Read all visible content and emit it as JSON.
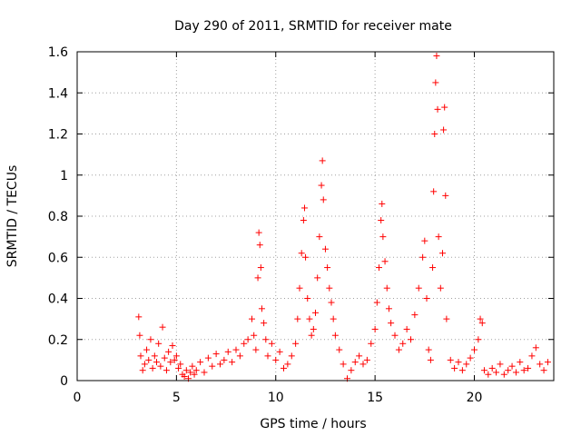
{
  "chart_data": {
    "type": "scatter",
    "title": "Day 290 of 2011, SRMTID for receiver mate",
    "xlabel": "GPS time / hours",
    "ylabel": "SRMTID / TECUs",
    "xlim": [
      0,
      24
    ],
    "ylim": [
      0,
      1.6
    ],
    "x_ticks": [
      0,
      5,
      10,
      15,
      20
    ],
    "x_tick_labels": [
      "0",
      "5",
      "10",
      "15",
      "20"
    ],
    "y_ticks": [
      0,
      0.2,
      0.4,
      0.6,
      0.8,
      1.0,
      1.2,
      1.4,
      1.6
    ],
    "y_tick_labels": [
      "0",
      "0.2",
      "0.4",
      "0.6",
      "0.8",
      "1",
      "1.2",
      "1.4",
      "1.6"
    ],
    "grid": true,
    "marker": "+",
    "marker_color": "#ff0000",
    "series": [
      {
        "name": "SRMTID",
        "points": [
          [
            3.1,
            0.31
          ],
          [
            3.15,
            0.22
          ],
          [
            3.2,
            0.12
          ],
          [
            3.3,
            0.05
          ],
          [
            3.4,
            0.08
          ],
          [
            3.5,
            0.15
          ],
          [
            3.6,
            0.1
          ],
          [
            3.7,
            0.2
          ],
          [
            3.8,
            0.06
          ],
          [
            3.9,
            0.12
          ],
          [
            4.0,
            0.09
          ],
          [
            4.1,
            0.18
          ],
          [
            4.2,
            0.07
          ],
          [
            4.3,
            0.26
          ],
          [
            4.4,
            0.11
          ],
          [
            4.5,
            0.05
          ],
          [
            4.6,
            0.14
          ],
          [
            4.7,
            0.09
          ],
          [
            4.8,
            0.17
          ],
          [
            4.9,
            0.1
          ],
          [
            5.0,
            0.12
          ],
          [
            5.1,
            0.06
          ],
          [
            5.2,
            0.08
          ],
          [
            5.3,
            0.03
          ],
          [
            5.4,
            0.02
          ],
          [
            5.5,
            0.05
          ],
          [
            5.6,
            0.01
          ],
          [
            5.7,
            0.04
          ],
          [
            5.8,
            0.07
          ],
          [
            5.9,
            0.03
          ],
          [
            6.0,
            0.05
          ],
          [
            6.2,
            0.09
          ],
          [
            6.4,
            0.04
          ],
          [
            6.6,
            0.11
          ],
          [
            6.8,
            0.07
          ],
          [
            7.0,
            0.13
          ],
          [
            7.2,
            0.08
          ],
          [
            7.4,
            0.1
          ],
          [
            7.6,
            0.14
          ],
          [
            7.8,
            0.09
          ],
          [
            8.0,
            0.15
          ],
          [
            8.2,
            0.12
          ],
          [
            8.4,
            0.18
          ],
          [
            8.6,
            0.2
          ],
          [
            8.8,
            0.3
          ],
          [
            8.9,
            0.22
          ],
          [
            9.0,
            0.15
          ],
          [
            9.1,
            0.5
          ],
          [
            9.15,
            0.72
          ],
          [
            9.2,
            0.66
          ],
          [
            9.25,
            0.55
          ],
          [
            9.3,
            0.35
          ],
          [
            9.4,
            0.28
          ],
          [
            9.5,
            0.2
          ],
          [
            9.6,
            0.12
          ],
          [
            9.8,
            0.18
          ],
          [
            10.0,
            0.1
          ],
          [
            10.2,
            0.14
          ],
          [
            10.4,
            0.06
          ],
          [
            10.6,
            0.08
          ],
          [
            10.8,
            0.12
          ],
          [
            11.0,
            0.18
          ],
          [
            11.1,
            0.3
          ],
          [
            11.2,
            0.45
          ],
          [
            11.3,
            0.62
          ],
          [
            11.4,
            0.78
          ],
          [
            11.45,
            0.84
          ],
          [
            11.5,
            0.6
          ],
          [
            11.6,
            0.4
          ],
          [
            11.7,
            0.3
          ],
          [
            11.8,
            0.22
          ],
          [
            11.9,
            0.25
          ],
          [
            12.0,
            0.33
          ],
          [
            12.1,
            0.5
          ],
          [
            12.2,
            0.7
          ],
          [
            12.3,
            0.95
          ],
          [
            12.35,
            1.07
          ],
          [
            12.4,
            0.88
          ],
          [
            12.5,
            0.64
          ],
          [
            12.6,
            0.55
          ],
          [
            12.7,
            0.45
          ],
          [
            12.8,
            0.38
          ],
          [
            12.9,
            0.3
          ],
          [
            13.0,
            0.22
          ],
          [
            13.2,
            0.15
          ],
          [
            13.4,
            0.08
          ],
          [
            13.6,
            0.01
          ],
          [
            13.8,
            0.05
          ],
          [
            14.0,
            0.09
          ],
          [
            14.2,
            0.12
          ],
          [
            14.4,
            0.08
          ],
          [
            14.6,
            0.1
          ],
          [
            14.8,
            0.18
          ],
          [
            15.0,
            0.25
          ],
          [
            15.1,
            0.38
          ],
          [
            15.2,
            0.55
          ],
          [
            15.3,
            0.78
          ],
          [
            15.35,
            0.86
          ],
          [
            15.4,
            0.7
          ],
          [
            15.5,
            0.58
          ],
          [
            15.6,
            0.45
          ],
          [
            15.7,
            0.35
          ],
          [
            15.8,
            0.28
          ],
          [
            16.0,
            0.22
          ],
          [
            16.2,
            0.15
          ],
          [
            16.4,
            0.18
          ],
          [
            16.6,
            0.25
          ],
          [
            16.8,
            0.2
          ],
          [
            17.0,
            0.32
          ],
          [
            17.2,
            0.45
          ],
          [
            17.4,
            0.6
          ],
          [
            17.5,
            0.68
          ],
          [
            17.6,
            0.4
          ],
          [
            17.7,
            0.15
          ],
          [
            17.8,
            0.1
          ],
          [
            17.9,
            0.55
          ],
          [
            17.95,
            0.92
          ],
          [
            18.0,
            1.2
          ],
          [
            18.05,
            1.45
          ],
          [
            18.1,
            1.58
          ],
          [
            18.15,
            1.32
          ],
          [
            18.2,
            0.7
          ],
          [
            18.3,
            0.45
          ],
          [
            18.4,
            0.62
          ],
          [
            18.45,
            1.22
          ],
          [
            18.5,
            1.33
          ],
          [
            18.55,
            0.9
          ],
          [
            18.6,
            0.3
          ],
          [
            18.8,
            0.1
          ],
          [
            19.0,
            0.06
          ],
          [
            19.2,
            0.09
          ],
          [
            19.4,
            0.05
          ],
          [
            19.6,
            0.08
          ],
          [
            19.8,
            0.11
          ],
          [
            20.0,
            0.15
          ],
          [
            20.2,
            0.2
          ],
          [
            20.3,
            0.3
          ],
          [
            20.4,
            0.28
          ],
          [
            20.5,
            0.05
          ],
          [
            20.7,
            0.03
          ],
          [
            20.9,
            0.06
          ],
          [
            21.1,
            0.04
          ],
          [
            21.3,
            0.08
          ],
          [
            21.5,
            0.03
          ],
          [
            21.7,
            0.05
          ],
          [
            21.9,
            0.07
          ],
          [
            22.1,
            0.04
          ],
          [
            22.3,
            0.09
          ],
          [
            22.5,
            0.05
          ],
          [
            22.7,
            0.06
          ],
          [
            22.9,
            0.12
          ],
          [
            23.1,
            0.16
          ],
          [
            23.3,
            0.08
          ],
          [
            23.5,
            0.05
          ],
          [
            23.7,
            0.09
          ]
        ]
      }
    ]
  }
}
